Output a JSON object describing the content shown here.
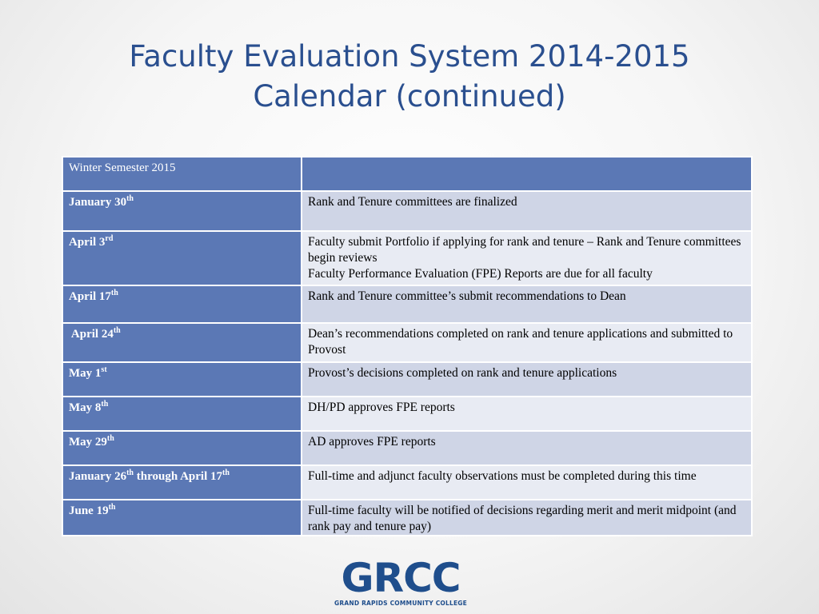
{
  "title": {
    "line1": "Faculty Evaluation System 2014-2015",
    "line2": "Calendar (continued)"
  },
  "table": {
    "header": {
      "col1": "Winter Semester 2015",
      "col2": ""
    },
    "rows": [
      {
        "date": "January 30",
        "date_sup": "th",
        "event": "Rank and Tenure committees are finalized"
      },
      {
        "date": "April 3",
        "date_sup": "rd",
        "event_lines": [
          "Faculty submit Portfolio if applying for rank and tenure – Rank and Tenure committees begin reviews",
          "Faculty Performance Evaluation (FPE) Reports are due for all faculty"
        ]
      },
      {
        "date": "April 17",
        "date_sup": "th",
        "event": "Rank and Tenure committee’s submit recommendations to Dean"
      },
      {
        "date": " April 24",
        "date_sup": "th",
        "event": "Dean’s recommendations completed on rank and tenure applications and submitted to Provost"
      },
      {
        "date": "May 1",
        "date_sup": "st",
        "event": "Provost’s decisions completed on rank and tenure applications"
      },
      {
        "date": "May 8",
        "date_sup": "th",
        "event": "DH/PD approves FPE reports"
      },
      {
        "date": "May 29",
        "date_sup": "th",
        "event": "AD approves FPE reports"
      },
      {
        "date_a": "January 26",
        "date_a_sup": "th",
        "date_mid": " through April 17",
        "date_b_sup": "th",
        "event": "Full-time and adjunct faculty observations must be completed during this time"
      },
      {
        "date": "June 19",
        "date_sup": "th",
        "event": "Full-time faculty will be notified of decisions regarding merit and merit midpoint (and rank pay and tenure pay)"
      }
    ]
  },
  "logo": {
    "word": "GRCC",
    "subtitle": "GRAND RAPIDS COMMUNITY COLLEGE"
  },
  "colors": {
    "title": "#2a4f8f",
    "header_fill": "#5b78b5",
    "row_odd_fill": "#cfd5e6",
    "row_even_fill": "#e8ebf3",
    "logo": "#1f4e8c"
  }
}
